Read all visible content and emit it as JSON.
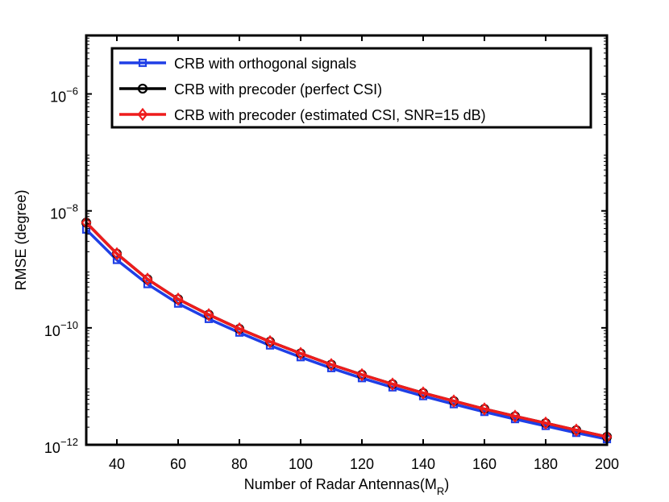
{
  "chart_data": {
    "type": "line",
    "yscale": "log",
    "xlabel": "Number of Radar Antennas(M",
    "xlabel_sub": "R",
    "xlabel_close": ")",
    "ylabel": "RMSE (degree)",
    "xlim": [
      30,
      200
    ],
    "ylim_exp": [
      -12,
      -5
    ],
    "xticks": [
      "40",
      "60",
      "80",
      "100",
      "120",
      "140",
      "160",
      "180",
      "200"
    ],
    "xtick_values": [
      40,
      60,
      80,
      100,
      120,
      140,
      160,
      180,
      200
    ],
    "yticks": [
      {
        "base": "10",
        "exp": "−12",
        "value_exp": -12
      },
      {
        "base": "10",
        "exp": "−10",
        "value_exp": -10
      },
      {
        "base": "10",
        "exp": "−8",
        "value_exp": -8
      },
      {
        "base": "10",
        "exp": "−6",
        "value_exp": -6
      }
    ],
    "x": [
      30,
      40,
      50,
      60,
      70,
      80,
      90,
      100,
      110,
      120,
      130,
      140,
      150,
      160,
      170,
      180,
      190,
      200
    ],
    "series": [
      {
        "name": "CRB with orthogonal signals",
        "color": "#1f3fe6",
        "marker": "square",
        "values": [
          4.8e-09,
          1.45e-09,
          5.6e-10,
          2.6e-10,
          1.42e-10,
          8.3e-11,
          5e-11,
          3.15e-11,
          2.05e-11,
          1.38e-11,
          9.6e-12,
          6.8e-12,
          4.95e-12,
          3.65e-12,
          2.75e-12,
          2.1e-12,
          1.6e-12,
          1.25e-12
        ]
      },
      {
        "name": "CRB with precoder (perfect CSI)",
        "color": "#000000",
        "marker": "circle",
        "values": [
          6.3e-09,
          1.85e-09,
          6.8e-10,
          3.1e-10,
          1.68e-10,
          9.6e-11,
          5.8e-11,
          3.65e-11,
          2.35e-11,
          1.58e-11,
          1.09e-11,
          7.7e-12,
          5.6e-12,
          4.1e-12,
          3.08e-12,
          2.35e-12,
          1.78e-12,
          1.37e-12
        ]
      },
      {
        "name": "CRB with precoder (estimated CSI, SNR=15 dB)",
        "color": "#ee1c1c",
        "marker": "diamond",
        "values": [
          6.3e-09,
          1.85e-09,
          6.8e-10,
          3.1e-10,
          1.68e-10,
          9.6e-11,
          5.8e-11,
          3.65e-11,
          2.35e-11,
          1.58e-11,
          1.09e-11,
          7.7e-12,
          5.6e-12,
          4.1e-12,
          3.08e-12,
          2.35e-12,
          1.78e-12,
          1.37e-12
        ]
      }
    ],
    "legend_position": "top-left"
  }
}
